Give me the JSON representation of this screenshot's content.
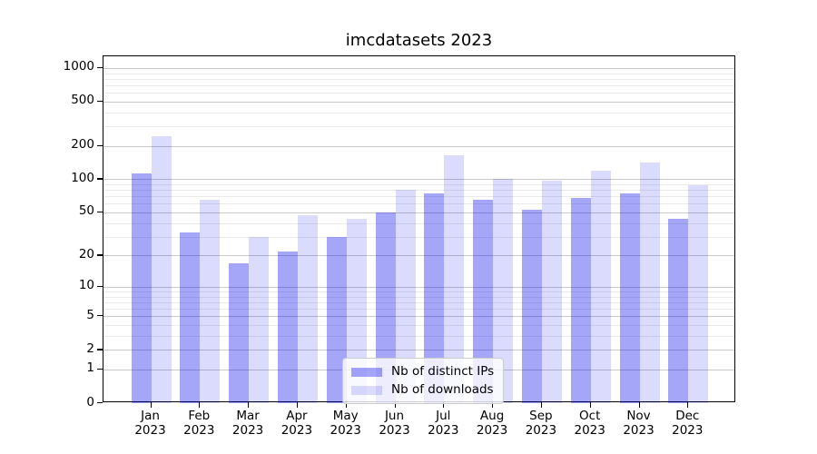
{
  "chart_data": {
    "type": "bar",
    "title": "imcdatasets 2023",
    "categories": [
      "Jan",
      "Feb",
      "Mar",
      "Apr",
      "May",
      "Jun",
      "Jul",
      "Aug",
      "Sep",
      "Oct",
      "Nov",
      "Dec"
    ],
    "category_year": "2023",
    "series": [
      {
        "name": "Nb of distinct IPs",
        "color": "rgba(0,0,238,0.35)",
        "values": [
          112,
          33,
          17,
          22,
          30,
          50,
          75,
          65,
          53,
          68,
          75,
          44
        ]
      },
      {
        "name": "Nb of downloads",
        "color": "rgba(0,0,238,0.14)",
        "values": [
          246,
          65,
          30,
          47,
          44,
          80,
          165,
          100,
          97,
          120,
          142,
          88
        ]
      }
    ],
    "xlabel": "",
    "ylabel": "",
    "yscale": "log1p",
    "yticks": [
      0,
      1,
      2,
      5,
      10,
      20,
      50,
      100,
      200,
      500,
      1000
    ],
    "minor_yticks": [
      3,
      4,
      6,
      7,
      8,
      9,
      30,
      40,
      60,
      70,
      80,
      90,
      300,
      400,
      600,
      700,
      800,
      900
    ],
    "ylim": [
      0,
      1300
    ],
    "grid": true,
    "legend_position": "lower center"
  }
}
